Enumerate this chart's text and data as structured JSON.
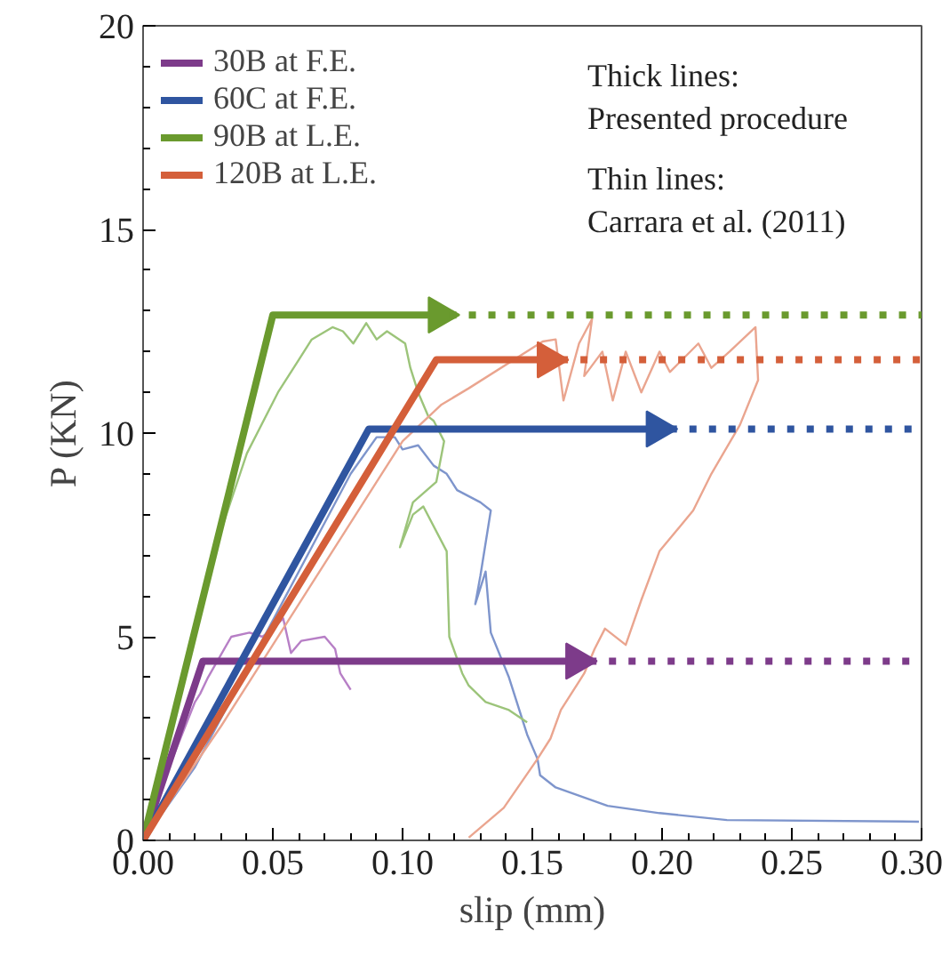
{
  "chart_data": {
    "type": "line",
    "xlabel": "slip (mm)",
    "ylabel": "P (KN)",
    "xlim": [
      0,
      0.3
    ],
    "ylim": [
      0,
      20
    ],
    "xticks": [
      {
        "value": 0,
        "label": "0.00"
      },
      {
        "value": 0.05,
        "label": "0.05"
      },
      {
        "value": 0.1,
        "label": "0.10"
      },
      {
        "value": 0.15,
        "label": "0.15"
      },
      {
        "value": 0.2,
        "label": "0.20"
      },
      {
        "value": 0.25,
        "label": "0.25"
      },
      {
        "value": 0.3,
        "label": "0.30"
      }
    ],
    "yticks": [
      0,
      5,
      10,
      15,
      20
    ],
    "grid": false,
    "legend": "top left",
    "line_style": "solid",
    "marker": "none",
    "annotations": [
      "Thick lines:",
      "Presented procedure",
      "Thin lines:",
      "Carrara et al. (2011)"
    ],
    "series": [
      {
        "name": "30B at F.E.",
        "color": "#7d3b8a",
        "x": [
          0,
          0.023,
          0.167
        ],
        "values": [
          0,
          4.4,
          4.4
        ]
      },
      {
        "name": "60C at F.E.",
        "color": "#2f55a0",
        "x": [
          0,
          0.087,
          0.198
        ],
        "values": [
          0,
          10.1,
          10.1
        ]
      },
      {
        "name": "90B at L.E.",
        "color": "#6a9a2e",
        "x": [
          0,
          0.05,
          0.114
        ],
        "values": [
          0,
          12.9,
          12.9
        ]
      },
      {
        "name": "120B at L.E.",
        "color": "#d45f3a",
        "x": [
          0,
          0.113,
          0.156
        ],
        "values": [
          0,
          11.8,
          11.8
        ]
      },
      {
        "color": "#7d3b8a",
        "line_style": "dotted",
        "x": [
          0.172,
          0.3
        ],
        "values": [
          4.4,
          4.4
        ]
      },
      {
        "color": "#2f55a0",
        "line_style": "dotted",
        "x": [
          0.203,
          0.3
        ],
        "values": [
          10.1,
          10.1
        ]
      },
      {
        "color": "#6a9a2e",
        "line_style": "dotted",
        "x": [
          0.118,
          0.3
        ],
        "values": [
          12.9,
          12.9
        ]
      },
      {
        "color": "#d45f3a",
        "line_style": "dotted",
        "x": [
          0.161,
          0.3
        ],
        "values": [
          11.8,
          11.8
        ]
      },
      {
        "color": "#b77fc6",
        "x": [
          0,
          0.01,
          0.02,
          0.022,
          0.025,
          0.034,
          0.041,
          0.046,
          0.05,
          0.054,
          0.057,
          0.061,
          0.07,
          0.074,
          0.076,
          0.08
        ],
        "values": [
          0,
          1.8,
          3.4,
          3.6,
          4.0,
          5.0,
          5.1,
          5.0,
          5.2,
          5.45,
          4.6,
          4.9,
          5.0,
          4.7,
          4.1,
          3.7
        ]
      },
      {
        "color": "#7e95cc",
        "x": [
          0,
          0.02,
          0.04,
          0.06,
          0.08,
          0.09,
          0.097,
          0.1,
          0.106,
          0.112,
          0.117,
          0.121,
          0.13,
          0.134,
          0.13,
          0.128,
          0.132,
          0.134,
          0.141,
          0.148,
          0.152,
          0.153,
          0.159,
          0.179,
          0.199,
          0.225,
          0.299
        ],
        "values": [
          0,
          1.8,
          4.2,
          6.6,
          9.0,
          9.9,
          9.9,
          9.6,
          9.7,
          9.2,
          9.0,
          8.6,
          8.3,
          8.1,
          6.5,
          5.8,
          6.6,
          5.1,
          4.0,
          2.6,
          2.0,
          1.6,
          1.3,
          0.85,
          0.67,
          0.5,
          0.46
        ]
      },
      {
        "color": "#9cc47a",
        "x": [
          0,
          0.01,
          0.02,
          0.03,
          0.04,
          0.052,
          0.06,
          0.065,
          0.073,
          0.077,
          0.081,
          0.086,
          0.09,
          0.094,
          0.101,
          0.103,
          0.106,
          0.11,
          0.112,
          0.116,
          0.113,
          0.104,
          0.099,
          0.104,
          0.108,
          0.117,
          0.118,
          0.123,
          0.1255,
          0.132,
          0.141,
          0.148
        ],
        "values": [
          0,
          2.5,
          5.0,
          7.6,
          9.5,
          11.0,
          11.8,
          12.3,
          12.6,
          12.5,
          12.2,
          12.7,
          12.3,
          12.5,
          12.2,
          11.6,
          11.0,
          10.4,
          10.3,
          9.8,
          8.8,
          8.3,
          7.2,
          8.0,
          8.2,
          7.1,
          5.0,
          4.1,
          3.8,
          3.4,
          3.2,
          2.9
        ]
      },
      {
        "color": "#eaa58f",
        "x": [
          0,
          0.03,
          0.06,
          0.09,
          0.1,
          0.115,
          0.1255,
          0.154,
          0.159,
          0.162,
          0.168,
          0.173,
          0.17,
          0.177,
          0.181,
          0.186,
          0.192,
          0.199,
          0.203,
          0.214,
          0.219,
          0.226,
          0.236,
          0.237,
          0.23,
          0.219,
          0.212,
          0.199,
          0.192,
          0.186,
          0.178,
          0.174,
          0.17,
          0.161,
          0.157,
          0.152,
          0.139,
          0.1255
        ],
        "values": [
          0,
          2.8,
          5.8,
          8.8,
          9.8,
          10.7,
          11.1,
          12.25,
          12.3,
          10.8,
          12.2,
          12.8,
          11.4,
          12.0,
          10.8,
          12.0,
          11.0,
          12.0,
          11.5,
          12.2,
          11.6,
          12.0,
          12.6,
          11.3,
          10.2,
          9.0,
          8.1,
          7.1,
          5.9,
          4.8,
          5.2,
          4.7,
          4.1,
          3.2,
          2.5,
          2.0,
          0.8,
          0.07
        ]
      }
    ]
  }
}
